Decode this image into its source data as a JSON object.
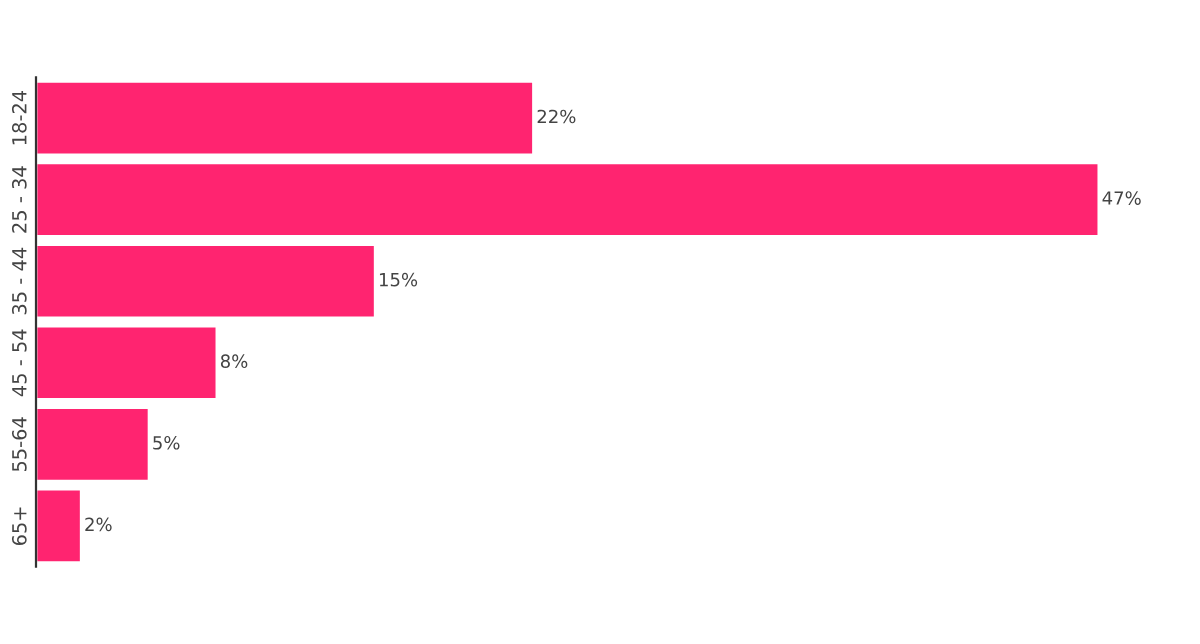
{
  "chart_data": {
    "type": "bar",
    "orientation": "horizontal",
    "categories": [
      "18-24",
      "25 - 34",
      "35 - 44",
      "45 - 54",
      "55-64",
      "65+"
    ],
    "values": [
      22,
      47,
      15,
      8,
      5,
      2
    ],
    "value_labels": [
      "22%",
      "47%",
      "15%",
      "8%",
      "5%",
      "2%"
    ],
    "color": "#ff2470",
    "grid": false,
    "legend": false
  }
}
